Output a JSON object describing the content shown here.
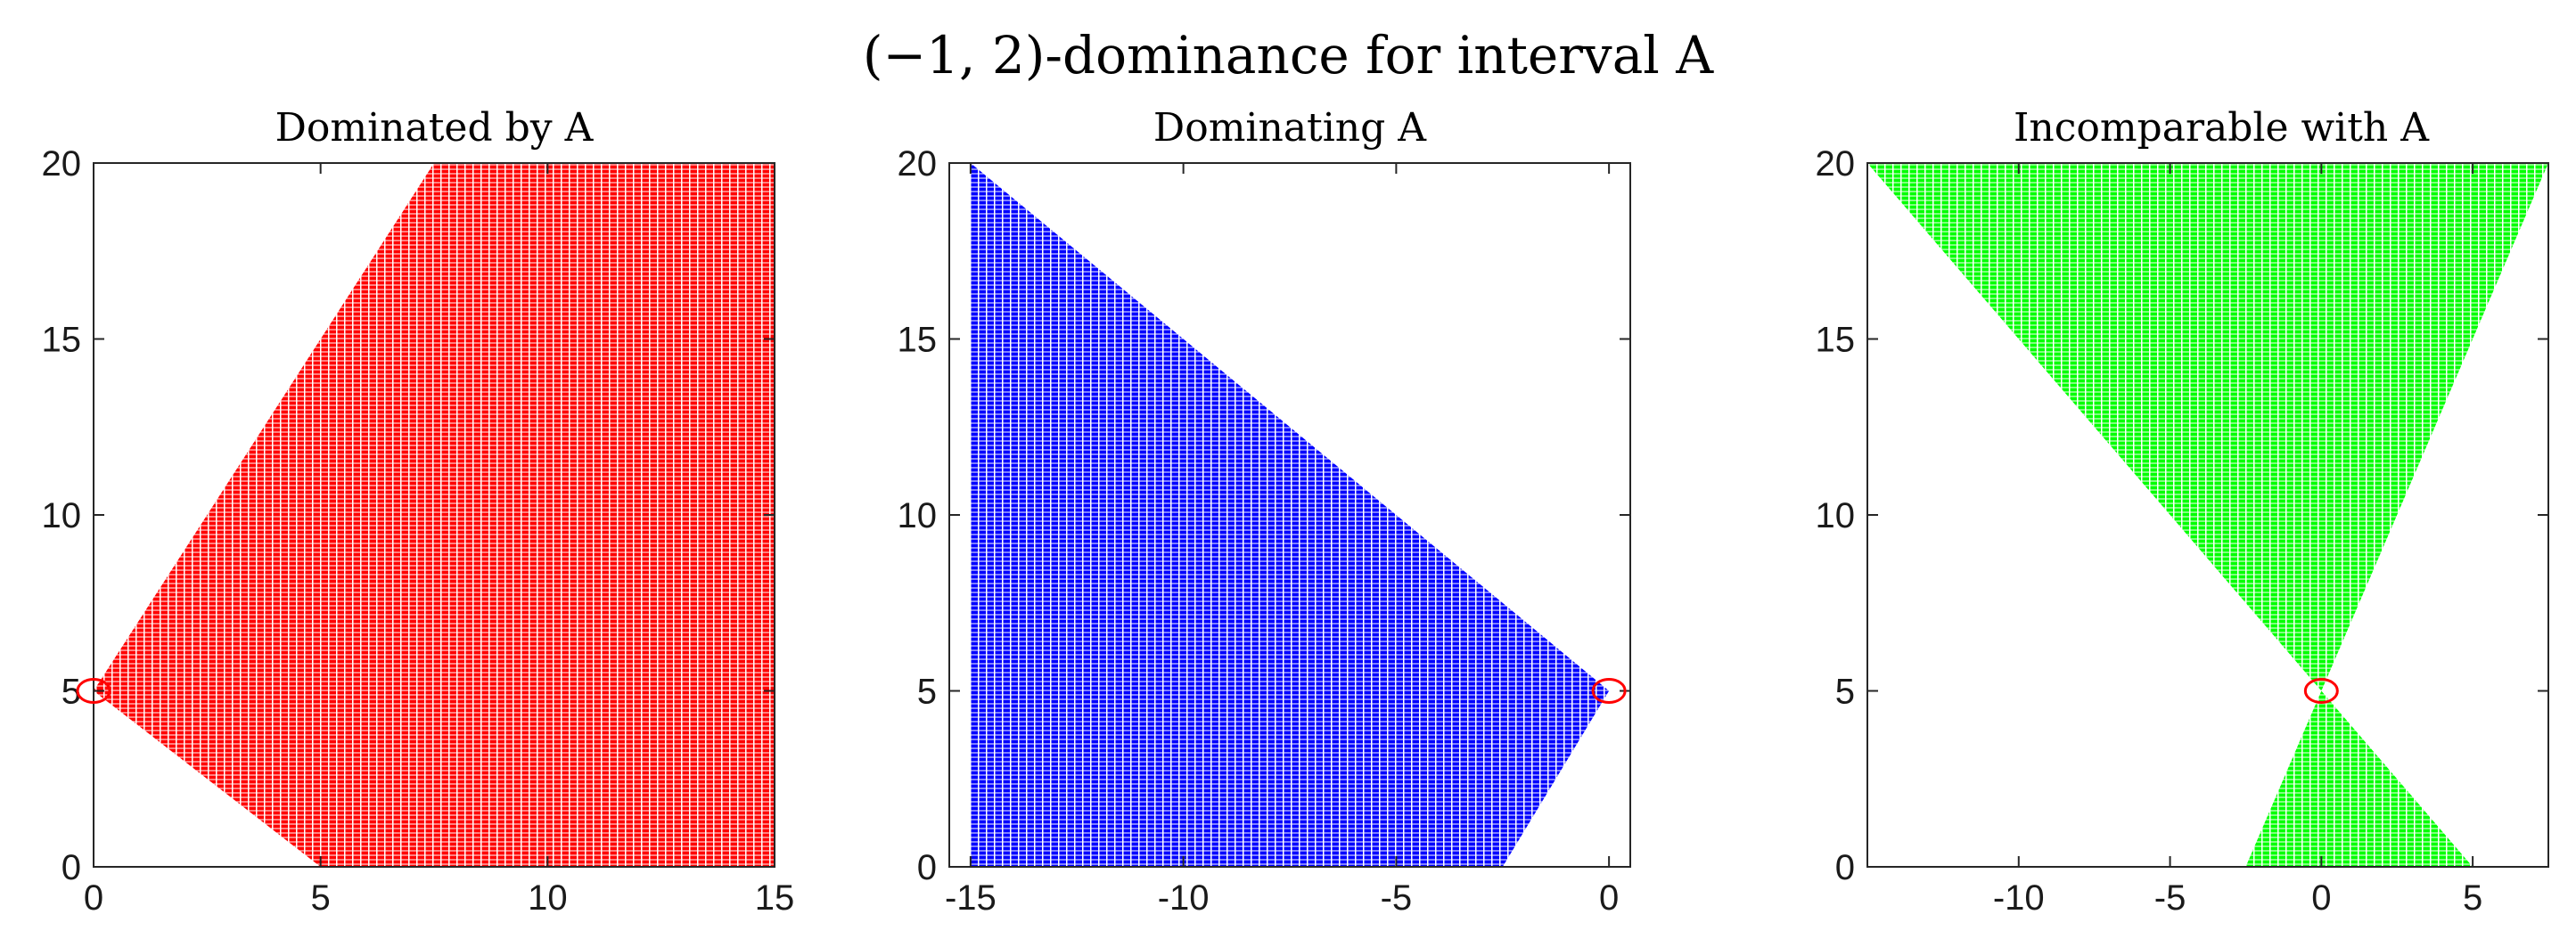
{
  "figure_title": "(−1, 2)-dominance for interval A",
  "chart_data": [
    {
      "type": "scatter",
      "title": "Dominated by A",
      "color": "#ff0000",
      "xlabel": "",
      "ylabel": "",
      "xlim": [
        0,
        15
      ],
      "ylim": [
        0,
        20
      ],
      "xticks": [
        0,
        5,
        10,
        15
      ],
      "yticks": [
        0,
        5,
        10,
        15,
        20
      ],
      "grid": false,
      "point_spacing": 0.25,
      "region_polygon": [
        [
          0,
          5
        ],
        [
          7.5,
          20
        ],
        [
          15,
          20
        ],
        [
          15,
          0
        ],
        [
          5,
          0
        ]
      ],
      "marker": {
        "shape": "circle",
        "color": "#ff0000",
        "x": 0,
        "y": 5
      }
    },
    {
      "type": "scatter",
      "title": "Dominating A",
      "color": "#0000ff",
      "xlabel": "",
      "ylabel": "",
      "xlim": [
        -15.5,
        0.5
      ],
      "ylim": [
        0,
        20
      ],
      "xticks": [
        -15,
        -10,
        -5,
        0
      ],
      "yticks": [
        0,
        5,
        10,
        15,
        20
      ],
      "grid": false,
      "point_spacing": 0.25,
      "region_polygon": [
        [
          0,
          5
        ],
        [
          -15,
          20
        ],
        [
          -15,
          0
        ],
        [
          -2.5,
          0
        ]
      ],
      "marker": {
        "shape": "circle",
        "color": "#ff0000",
        "x": 0,
        "y": 5
      }
    },
    {
      "type": "scatter",
      "title": "Incomparable with A",
      "color": "#00ff00",
      "xlabel": "",
      "ylabel": "",
      "xlim": [
        -15,
        7.5
      ],
      "ylim": [
        0,
        20
      ],
      "xticks": [
        -10,
        -5,
        0,
        5
      ],
      "yticks": [
        0,
        5,
        10,
        15,
        20
      ],
      "grid": false,
      "point_spacing": 0.25,
      "region_polygons": [
        [
          [
            -15,
            20
          ],
          [
            7.5,
            20
          ],
          [
            0,
            5
          ]
        ],
        [
          [
            0,
            5
          ],
          [
            -2.5,
            0
          ],
          [
            5,
            0
          ]
        ]
      ],
      "marker": {
        "shape": "circle",
        "color": "#ff0000",
        "x": 0,
        "y": 5
      }
    }
  ]
}
